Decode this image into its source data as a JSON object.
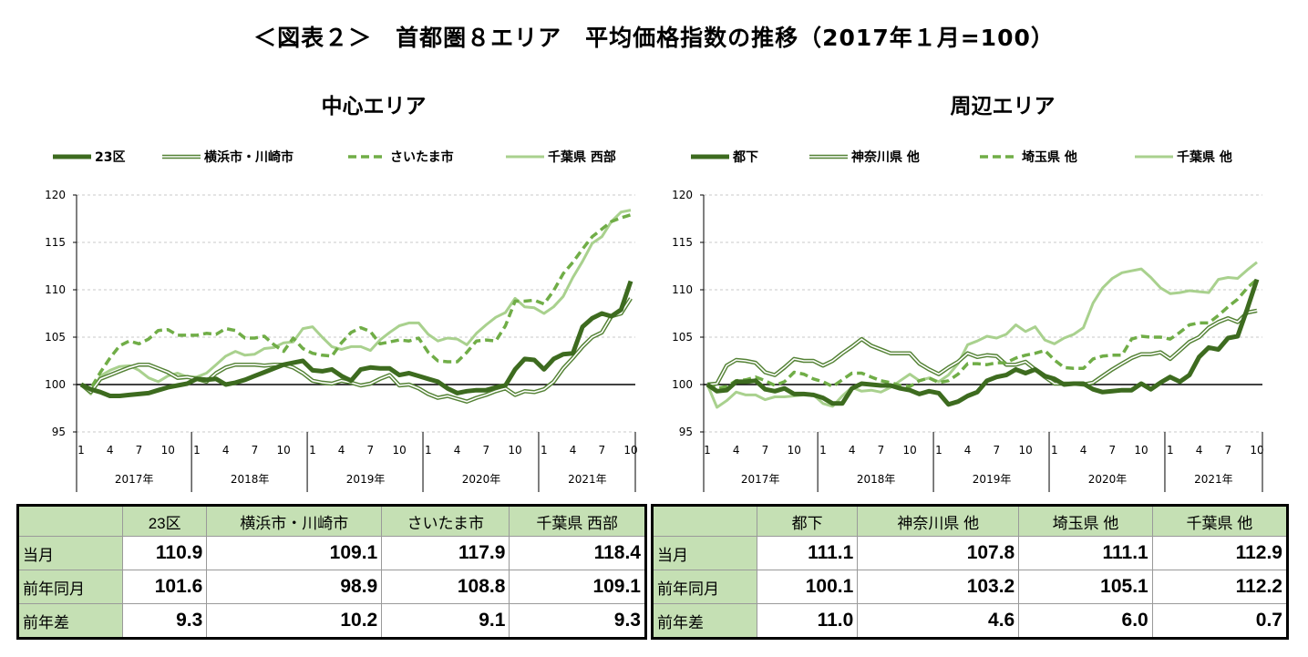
{
  "title": "＜図表２＞　首都圏８エリア　平均価格指数の推移（2017年１月=100）",
  "chart_data": [
    {
      "type": "line",
      "title": "中心エリア",
      "ylim": [
        95,
        120
      ],
      "yticks": [
        95,
        100,
        105,
        110,
        115,
        120
      ],
      "grid": true,
      "legend": "top",
      "x_month_ticks": [
        "1",
        "4",
        "7",
        "10"
      ],
      "years": [
        "2017年",
        "2018年",
        "2019年",
        "2020年",
        "2021年"
      ],
      "x_range": "2017-01 to 2021-10 (monthly)",
      "series": [
        {
          "name": "23区",
          "style": "thick",
          "color": "#3d6b1f",
          "values": [
            100,
            99.5,
            99.2,
            98.8,
            98.8,
            98.9,
            99.0,
            99.1,
            99.4,
            99.7,
            99.9,
            100.1,
            100.6,
            100.5,
            100.6,
            100.0,
            100.2,
            100.5,
            100.9,
            101.3,
            101.7,
            102.1,
            102.3,
            102.5,
            101.5,
            101.4,
            101.6,
            100.9,
            100.4,
            101.6,
            101.8,
            101.7,
            101.7,
            101.0,
            101.2,
            100.9,
            100.6,
            100.3,
            99.6,
            99.1,
            99.3,
            99.4,
            99.4,
            99.7,
            99.9,
            101.6,
            102.7,
            102.6,
            101.6,
            102.7,
            103.2,
            103.3,
            106.1,
            107.0,
            107.5,
            107.2,
            107.9,
            110.9
          ]
        },
        {
          "name": "横浜市・川崎市",
          "style": "double",
          "color": "#548235",
          "values": [
            100,
            99.2,
            100.6,
            101.0,
            101.4,
            101.8,
            102.1,
            102.1,
            101.7,
            101.3,
            100.7,
            100.8,
            100.6,
            100.3,
            101.2,
            101.8,
            102.1,
            102.1,
            102.1,
            102.0,
            102.1,
            102.1,
            101.8,
            101.2,
            100.4,
            100.2,
            100.1,
            100.4,
            100.2,
            99.9,
            100.1,
            100.6,
            101.0,
            99.9,
            100.0,
            99.6,
            99.0,
            98.6,
            98.8,
            98.5,
            98.2,
            98.6,
            98.9,
            99.3,
            99.6,
            98.9,
            99.3,
            99.2,
            99.5,
            100.3,
            101.7,
            102.8,
            104.0,
            105.0,
            105.5,
            107.2,
            107.5,
            109.1
          ]
        },
        {
          "name": "さいたま市",
          "style": "dashed",
          "color": "#70ad47",
          "values": [
            100,
            99.6,
            101.3,
            102.8,
            104.1,
            104.6,
            104.3,
            104.8,
            105.7,
            105.8,
            105.2,
            105.2,
            105.2,
            105.4,
            105.3,
            105.9,
            105.7,
            104.9,
            104.9,
            105.1,
            104.2,
            103.5,
            104.9,
            103.8,
            103.3,
            103.1,
            103.0,
            104.4,
            105.5,
            106.0,
            105.6,
            104.3,
            104.5,
            104.7,
            104.6,
            104.9,
            103.4,
            102.5,
            102.4,
            102.4,
            103.4,
            104.6,
            104.7,
            104.6,
            106.2,
            108.8,
            108.8,
            108.9,
            108.5,
            109.9,
            111.7,
            112.9,
            114.3,
            115.6,
            116.4,
            117.2,
            117.6,
            117.9
          ]
        },
        {
          "name": "千葉県 西部",
          "style": "light",
          "color": "#a9d18e",
          "values": [
            100,
            99.0,
            100.9,
            101.5,
            101.9,
            102.0,
            101.5,
            100.7,
            100.3,
            100.9,
            101.2,
            100.8,
            100.8,
            101.2,
            102.1,
            103.0,
            103.5,
            103.1,
            103.2,
            103.8,
            103.9,
            104.4,
            104.5,
            105.9,
            106.1,
            105.0,
            104.0,
            103.7,
            104.0,
            104.0,
            103.6,
            104.7,
            105.5,
            106.2,
            106.5,
            106.5,
            105.3,
            104.6,
            104.9,
            104.8,
            104.2,
            105.4,
            106.3,
            107.1,
            107.6,
            109.1,
            108.2,
            108.1,
            107.5,
            108.2,
            109.3,
            111.3,
            113.0,
            114.9,
            115.6,
            117.2,
            118.2,
            118.4
          ]
        }
      ]
    },
    {
      "type": "line",
      "title": "周辺エリア",
      "ylim": [
        95,
        120
      ],
      "yticks": [
        95,
        100,
        105,
        110,
        115,
        120
      ],
      "grid": true,
      "legend": "top",
      "x_month_ticks": [
        "1",
        "4",
        "7",
        "10"
      ],
      "years": [
        "2017年",
        "2018年",
        "2019年",
        "2020年",
        "2021年"
      ],
      "x_range": "2017-01 to 2021-10 (monthly)",
      "series": [
        {
          "name": "都下",
          "style": "thick",
          "color": "#3d6b1f",
          "values": [
            100,
            99.3,
            99.4,
            100.3,
            100.3,
            100.4,
            99.5,
            99.3,
            99.6,
            99.0,
            99.0,
            98.9,
            98.6,
            98.0,
            98.0,
            99.6,
            100.1,
            100.0,
            99.9,
            99.9,
            99.6,
            99.4,
            99.0,
            99.3,
            99.1,
            97.9,
            98.2,
            98.8,
            99.2,
            100.4,
            100.8,
            101.0,
            101.6,
            101.2,
            101.6,
            100.9,
            100.6,
            100.0,
            100.1,
            100.1,
            99.5,
            99.2,
            99.3,
            99.4,
            99.4,
            100.1,
            99.5,
            100.2,
            100.8,
            100.3,
            101.0,
            102.9,
            103.9,
            103.7,
            104.9,
            105.1,
            108.0,
            111.1
          ]
        },
        {
          "name": "神奈川県 他",
          "style": "double",
          "color": "#548235",
          "values": [
            100,
            100.1,
            102.0,
            102.6,
            102.5,
            102.3,
            101.3,
            101.0,
            101.8,
            102.7,
            102.5,
            102.5,
            102.0,
            102.5,
            103.3,
            104.0,
            104.8,
            104.1,
            103.7,
            103.3,
            103.3,
            103.3,
            102.2,
            101.6,
            101.1,
            101.8,
            102.4,
            103.3,
            102.9,
            103.1,
            103.0,
            102.1,
            102.1,
            102.4,
            101.6,
            100.8,
            100.1,
            100.1,
            100.1,
            100.0,
            100.2,
            100.9,
            101.6,
            102.2,
            102.8,
            103.2,
            103.2,
            103.4,
            102.7,
            103.6,
            104.5,
            105.0,
            106.0,
            106.6,
            107.0,
            106.6,
            107.6,
            107.8
          ]
        },
        {
          "name": "埼玉県 他",
          "style": "dashed",
          "color": "#70ad47",
          "values": [
            100,
            99.6,
            99.8,
            100.4,
            100.5,
            100.8,
            100.4,
            99.9,
            100.3,
            101.3,
            101.1,
            100.6,
            100.3,
            99.8,
            100.5,
            101.2,
            101.2,
            100.8,
            100.4,
            100.2,
            99.9,
            99.8,
            100.4,
            100.7,
            100.2,
            100.4,
            101.1,
            102.2,
            102.2,
            102.1,
            102.3,
            102.3,
            102.8,
            103.1,
            103.3,
            103.6,
            102.6,
            101.8,
            101.7,
            101.7,
            102.7,
            103.0,
            103.1,
            103.1,
            104.8,
            105.1,
            105.0,
            105.0,
            104.8,
            105.5,
            106.3,
            106.5,
            106.5,
            107.3,
            108.2,
            109.0,
            110.2,
            111.1
          ]
        },
        {
          "name": "千葉県 他",
          "style": "light",
          "color": "#a9d18e",
          "values": [
            100,
            97.6,
            98.3,
            99.2,
            98.9,
            98.9,
            98.4,
            98.7,
            98.7,
            98.8,
            98.9,
            98.9,
            98.0,
            97.7,
            98.8,
            99.7,
            99.3,
            99.4,
            99.2,
            99.7,
            100.4,
            101.1,
            100.4,
            100.7,
            100.3,
            101.0,
            102.2,
            104.2,
            104.6,
            105.1,
            104.9,
            105.3,
            106.3,
            105.6,
            106.1,
            104.7,
            104.3,
            104.9,
            105.3,
            106.0,
            108.6,
            110.2,
            111.2,
            111.8,
            112.0,
            112.2,
            111.3,
            110.2,
            109.6,
            109.7,
            109.9,
            109.8,
            109.7,
            111.1,
            111.3,
            111.2,
            112.1,
            112.9
          ]
        }
      ]
    }
  ],
  "tables": [
    {
      "headers": [
        "",
        "23区",
        "横浜市・川崎市",
        "さいたま市",
        "千葉県 西部"
      ],
      "rows": [
        {
          "label": "当月",
          "values": [
            "110.9",
            "109.1",
            "117.9",
            "118.4"
          ]
        },
        {
          "label": "前年同月",
          "values": [
            "101.6",
            "98.9",
            "108.8",
            "109.1"
          ]
        },
        {
          "label": "前年差",
          "values": [
            "9.3",
            "10.2",
            "9.1",
            "9.3"
          ]
        }
      ]
    },
    {
      "headers": [
        "",
        "都下",
        "神奈川県 他",
        "埼玉県 他",
        "千葉県 他"
      ],
      "rows": [
        {
          "label": "当月",
          "values": [
            "111.1",
            "107.8",
            "111.1",
            "112.9"
          ]
        },
        {
          "label": "前年同月",
          "values": [
            "100.1",
            "103.2",
            "105.1",
            "112.2"
          ]
        },
        {
          "label": "前年差",
          "values": [
            "11.0",
            "4.6",
            "6.0",
            "0.7"
          ]
        }
      ]
    }
  ]
}
